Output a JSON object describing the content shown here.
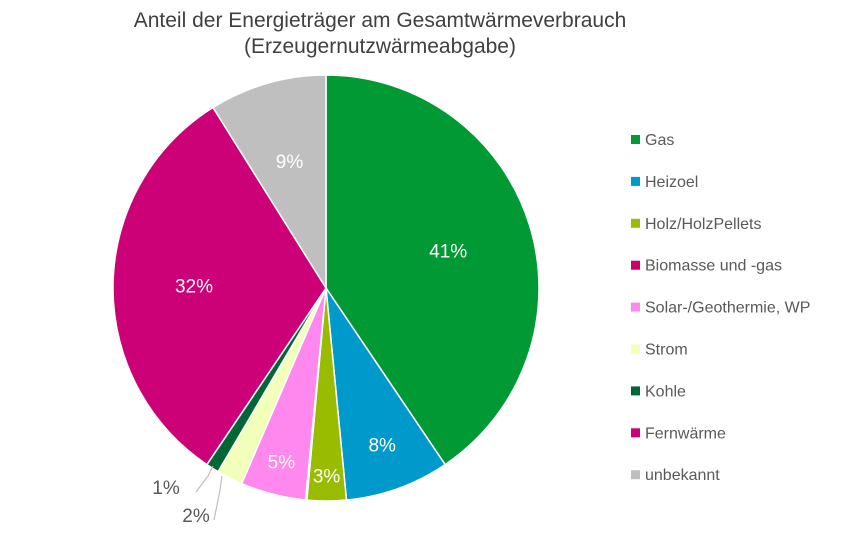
{
  "chart_data": {
    "type": "pie",
    "title_line1": "Anteil der Energieträger am Gesamtwärmeverbrauch",
    "title_line2": "(Erzeugernutzwärmeabgabe)",
    "legend_position": "right",
    "slices": [
      {
        "name": "Gas",
        "value": 41,
        "label": "41%",
        "color": "#009933"
      },
      {
        "name": "Heizoel",
        "value": 8,
        "label": "8%",
        "color": "#0099cc"
      },
      {
        "name": "Holz/HolzPellets",
        "value": 3,
        "label": "3%",
        "color": "#99bb00"
      },
      {
        "name": "Biomasse und -gas",
        "value": 0.1,
        "label": "",
        "color": "#cc0066"
      },
      {
        "name": "Solar-/Geothermie, WP",
        "value": 5,
        "label": "5%",
        "color": "#ff88ee"
      },
      {
        "name": "Strom",
        "value": 2,
        "label": "2%",
        "color": "#f2ffbb"
      },
      {
        "name": "Kohle",
        "value": 1,
        "label": "1%",
        "color": "#006633"
      },
      {
        "name": "Fernwärme",
        "value": 32,
        "label": "32%",
        "color": "#cc0077"
      },
      {
        "name": "unbekannt",
        "value": 9,
        "label": "9%",
        "color": "#bfbfbf"
      }
    ]
  }
}
